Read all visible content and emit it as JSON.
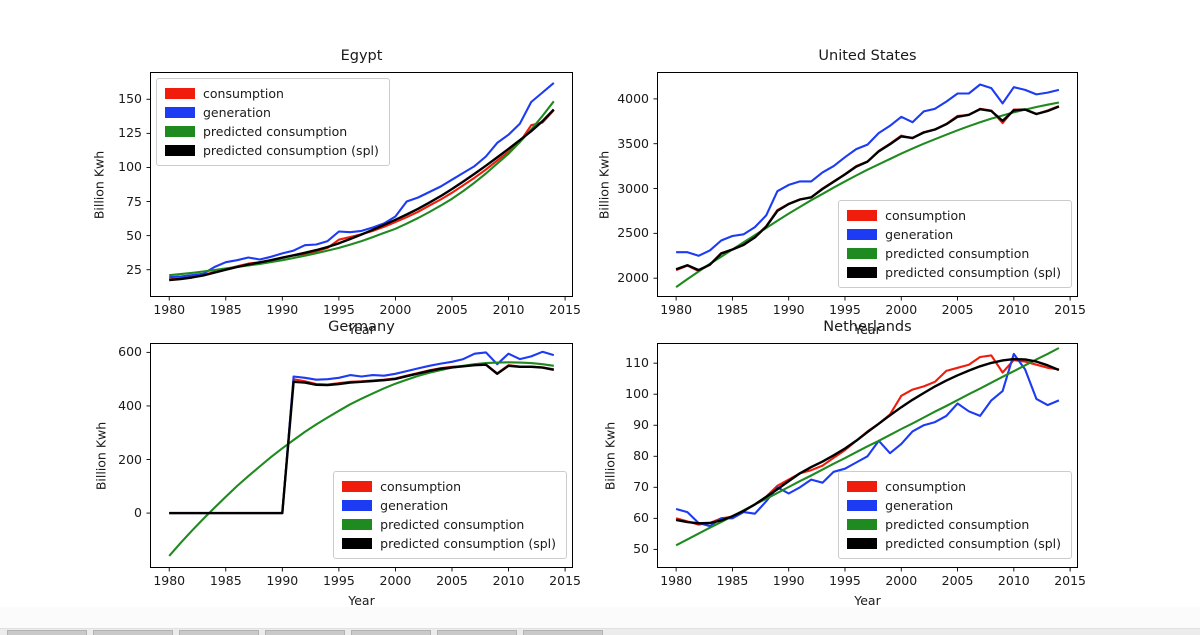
{
  "page": {
    "background": "#ffffff"
  },
  "palette": {
    "consumption": "#f01c0c",
    "generation": "#1c3bf2",
    "predicted": "#1f8a1f",
    "predicted_spl": "#000000",
    "axis": "#000000",
    "text": "#1a1a1a",
    "legend_border": "#cccccc"
  },
  "x_years": [
    1980,
    1981,
    1982,
    1983,
    1984,
    1985,
    1986,
    1987,
    1988,
    1989,
    1990,
    1991,
    1992,
    1993,
    1994,
    1995,
    1996,
    1997,
    1998,
    1999,
    2000,
    2001,
    2002,
    2003,
    2004,
    2005,
    2006,
    2007,
    2008,
    2009,
    2010,
    2011,
    2012,
    2013,
    2014
  ],
  "bottom_bar": {
    "segments": 7
  },
  "chart_data": [
    {
      "type": "line",
      "title": "Egypt",
      "xlabel": "Year",
      "ylabel": "Billion Kwh",
      "xticks": [
        1980,
        1985,
        1990,
        1995,
        2000,
        2005,
        2010,
        2015
      ],
      "yticks": [
        25,
        50,
        75,
        100,
        125,
        150
      ],
      "xlim": [
        1978.3,
        2015.7
      ],
      "ylim": [
        5,
        170
      ],
      "legend_position": "upper-left",
      "grid": false,
      "series": [
        {
          "name": "consumption",
          "color": "consumption",
          "values": [
            18,
            18.5,
            19.5,
            21,
            23.5,
            25.5,
            27.5,
            29.5,
            30.5,
            32,
            34,
            35.5,
            36.5,
            38.5,
            41,
            47,
            49,
            51,
            53.5,
            56.5,
            60,
            63.5,
            67.5,
            72,
            76.5,
            81.5,
            87,
            92.5,
            98.5,
            105,
            111.5,
            118.5,
            131,
            133,
            142
          ]
        },
        {
          "name": "generation",
          "color": "generation",
          "values": [
            19.5,
            20,
            21,
            22,
            27,
            30.5,
            32,
            34,
            32.5,
            34.5,
            37,
            39,
            43,
            43.5,
            46,
            53,
            52.5,
            53.5,
            56,
            59,
            64,
            75,
            78,
            82,
            86,
            91,
            96,
            101,
            108,
            118,
            124,
            132,
            148,
            155,
            162
          ]
        },
        {
          "name": "predicted consumption",
          "color": "predicted",
          "values": [
            21,
            21.8,
            22.7,
            23.7,
            24.8,
            26,
            27,
            28.1,
            29.3,
            30.6,
            32,
            33.6,
            35.3,
            37.1,
            39,
            41,
            43.4,
            46,
            48.9,
            52,
            55,
            58.8,
            62.9,
            67.3,
            72,
            77,
            82.7,
            88.9,
            95.6,
            102.8,
            110,
            118.5,
            127.8,
            137.8,
            148.5
          ]
        },
        {
          "name": "predicted consumption (spl)",
          "color": "predicted_spl",
          "values": [
            17.5,
            18.2,
            19.3,
            20.8,
            22.9,
            25,
            27,
            28.8,
            30.4,
            32,
            33.8,
            35.6,
            37.4,
            39.4,
            41.7,
            44.4,
            47.5,
            50.8,
            54.3,
            57.9,
            61.6,
            65.5,
            69.7,
            74.2,
            79,
            84.2,
            89.7,
            95.4,
            101.3,
            107.4,
            113.6,
            120,
            126.6,
            133.9,
            142.5
          ]
        }
      ]
    },
    {
      "type": "line",
      "title": "United States",
      "xlabel": "Year",
      "ylabel": "Billion Kwh",
      "xticks": [
        1980,
        1985,
        1990,
        1995,
        2000,
        2005,
        2010,
        2015
      ],
      "yticks": [
        2000,
        2500,
        3000,
        3500,
        4000
      ],
      "xlim": [
        1978.3,
        2015.7
      ],
      "ylim": [
        1790,
        4300
      ],
      "legend_position": "lower-right",
      "grid": false,
      "series": [
        {
          "name": "consumption",
          "color": "consumption",
          "values": [
            2090,
            2140,
            2080,
            2150,
            2280,
            2320,
            2370,
            2460,
            2580,
            2760,
            2830,
            2880,
            2900,
            3000,
            3080,
            3160,
            3250,
            3300,
            3420,
            3500,
            3590,
            3560,
            3630,
            3660,
            3720,
            3810,
            3820,
            3890,
            3870,
            3730,
            3880,
            3880,
            3830,
            3870,
            3920
          ]
        },
        {
          "name": "generation",
          "color": "generation",
          "values": [
            2290,
            2290,
            2250,
            2310,
            2420,
            2470,
            2490,
            2570,
            2700,
            2970,
            3040,
            3080,
            3080,
            3180,
            3250,
            3350,
            3440,
            3490,
            3620,
            3700,
            3800,
            3740,
            3860,
            3890,
            3970,
            4060,
            4060,
            4160,
            4120,
            3950,
            4130,
            4100,
            4050,
            4070,
            4100
          ]
        },
        {
          "name": "predicted consumption",
          "color": "predicted",
          "values": [
            1900,
            1990,
            2075,
            2160,
            2240,
            2320,
            2400,
            2480,
            2560,
            2640,
            2720,
            2795,
            2870,
            2940,
            3010,
            3080,
            3145,
            3210,
            3270,
            3330,
            3390,
            3445,
            3500,
            3550,
            3600,
            3650,
            3695,
            3740,
            3780,
            3815,
            3850,
            3880,
            3910,
            3935,
            3960
          ]
        },
        {
          "name": "predicted consumption (spl)",
          "color": "predicted_spl",
          "values": [
            2100,
            2145,
            2090,
            2150,
            2275,
            2320,
            2372,
            2455,
            2575,
            2750,
            2828,
            2878,
            2902,
            2995,
            3075,
            3158,
            3245,
            3300,
            3415,
            3495,
            3582,
            3565,
            3625,
            3658,
            3718,
            3800,
            3822,
            3885,
            3865,
            3755,
            3872,
            3882,
            3832,
            3865,
            3915
          ]
        }
      ]
    },
    {
      "type": "line",
      "title": "Germany",
      "xlabel": "Year",
      "ylabel": "Billion Kwh",
      "xticks": [
        1980,
        1985,
        1990,
        1995,
        2000,
        2005,
        2010,
        2015
      ],
      "yticks": [
        0,
        200,
        400,
        600
      ],
      "xlim": [
        1978.3,
        2015.7
      ],
      "ylim": [
        -205,
        635
      ],
      "legend_position": "lower-right",
      "grid": false,
      "series": [
        {
          "name": "consumption",
          "color": "consumption",
          "values": [
            0,
            0,
            0,
            0,
            0,
            0,
            0,
            0,
            0,
            0,
            0,
            500,
            492,
            482,
            480,
            485,
            490,
            492,
            495,
            498,
            503,
            513,
            523,
            533,
            541,
            546,
            549,
            553,
            555,
            522,
            552,
            547,
            547,
            544,
            537
          ]
        },
        {
          "name": "generation",
          "color": "generation",
          "values": [
            0,
            0,
            0,
            0,
            0,
            0,
            0,
            0,
            0,
            0,
            0,
            510,
            505,
            498,
            500,
            505,
            515,
            510,
            515,
            513,
            520,
            530,
            540,
            550,
            558,
            565,
            575,
            595,
            600,
            556,
            595,
            575,
            585,
            602,
            590
          ]
        },
        {
          "name": "predicted consumption",
          "color": "predicted",
          "values": [
            -160,
            -112,
            -66,
            -22,
            20,
            61,
            101,
            138,
            174,
            209,
            242,
            273,
            303,
            331,
            357,
            382,
            406,
            427,
            447,
            466,
            483,
            498,
            512,
            524,
            534,
            543,
            550,
            556,
            560,
            562,
            563,
            562,
            560,
            556,
            550
          ]
        },
        {
          "name": "predicted consumption (spl)",
          "color": "predicted_spl",
          "values": [
            0,
            0,
            0,
            0,
            0,
            0,
            0,
            0,
            0,
            0,
            0,
            490,
            487,
            479,
            478,
            482,
            487,
            490,
            493,
            496,
            501,
            511,
            521,
            531,
            539,
            544,
            548,
            552,
            554,
            520,
            550,
            546,
            546,
            543,
            535
          ]
        }
      ]
    },
    {
      "type": "line",
      "title": "Netherlands",
      "xlabel": "Year",
      "ylabel": "Billion Kwh",
      "xticks": [
        1980,
        1985,
        1990,
        1995,
        2000,
        2005,
        2010,
        2015
      ],
      "yticks": [
        50,
        60,
        70,
        80,
        90,
        100,
        110
      ],
      "xlim": [
        1978.3,
        2015.7
      ],
      "ylim": [
        44,
        116.5
      ],
      "legend_position": "lower-right",
      "grid": false,
      "series": [
        {
          "name": "consumption",
          "color": "consumption",
          "values": [
            60,
            59,
            58,
            58.5,
            60,
            60.5,
            62.5,
            64.5,
            67,
            70.5,
            72.5,
            74.5,
            75.5,
            77,
            79.5,
            82,
            85,
            88,
            90.5,
            93.5,
            99.5,
            101.5,
            102.5,
            104,
            107.5,
            108.5,
            109.5,
            112,
            112.5,
            107,
            111,
            110.5,
            109.5,
            108.5,
            108
          ]
        },
        {
          "name": "generation",
          "color": "generation",
          "values": [
            63,
            62,
            58.5,
            57.5,
            60,
            60,
            62,
            61.5,
            65.5,
            70,
            68,
            70,
            72.5,
            71.5,
            75,
            76,
            78,
            80,
            85,
            81,
            84,
            88,
            90,
            91,
            93,
            97,
            94.5,
            93,
            98,
            101,
            113,
            108,
            98.5,
            96.5,
            98
          ]
        },
        {
          "name": "predicted consumption",
          "color": "predicted",
          "values": [
            51.3,
            53.2,
            55.1,
            57,
            58.8,
            60.7,
            62.6,
            64.5,
            66.3,
            68.2,
            70.1,
            72,
            73.8,
            75.7,
            77.6,
            79.4,
            81.3,
            83.2,
            85,
            86.9,
            88.8,
            90.6,
            92.5,
            94.4,
            96.2,
            98.1,
            100,
            101.8,
            103.7,
            105.6,
            107.4,
            109.3,
            111.2,
            113,
            114.9
          ]
        },
        {
          "name": "predicted consumption (spl)",
          "color": "predicted_spl",
          "values": [
            59.5,
            58.8,
            58.4,
            58.5,
            59.3,
            60.7,
            62.4,
            64.5,
            66.9,
            69.4,
            72,
            74.5,
            76.5,
            78.3,
            80.3,
            82.5,
            85,
            87.8,
            90.5,
            93.2,
            95.8,
            98.2,
            100.4,
            102.5,
            104.4,
            106.1,
            107.6,
            109,
            110.1,
            110.9,
            111.3,
            111.2,
            110.5,
            109.3,
            107.8
          ]
        }
      ]
    }
  ]
}
